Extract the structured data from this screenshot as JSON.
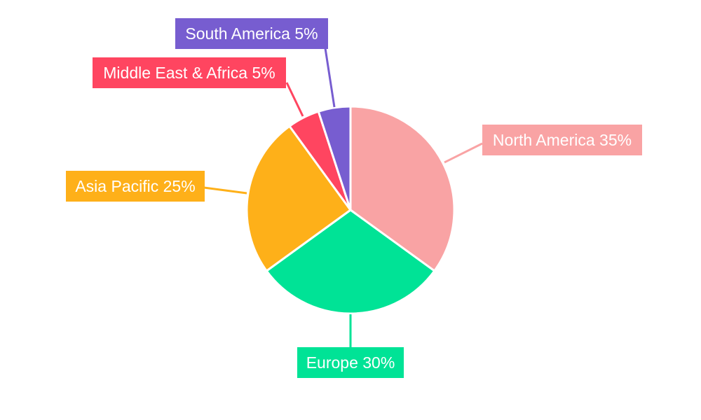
{
  "chart_data": {
    "type": "pie",
    "title": "",
    "categories": [
      "North America",
      "Europe",
      "Asia Pacific",
      "Middle East & Africa",
      "South America"
    ],
    "values": [
      35,
      30,
      25,
      5,
      5
    ],
    "unit": "%",
    "labels": [
      "North America 35%",
      "Europe 30%",
      "Asia Pacific 25%",
      "Middle East & Africa 5%",
      "South America 5%"
    ],
    "colors": [
      "#F9A3A4",
      "#00E396",
      "#FEB019",
      "#FF4560",
      "#775DD0"
    ],
    "start_angle": "12 o'clock, clockwise",
    "legend": "none (callout labels)"
  }
}
